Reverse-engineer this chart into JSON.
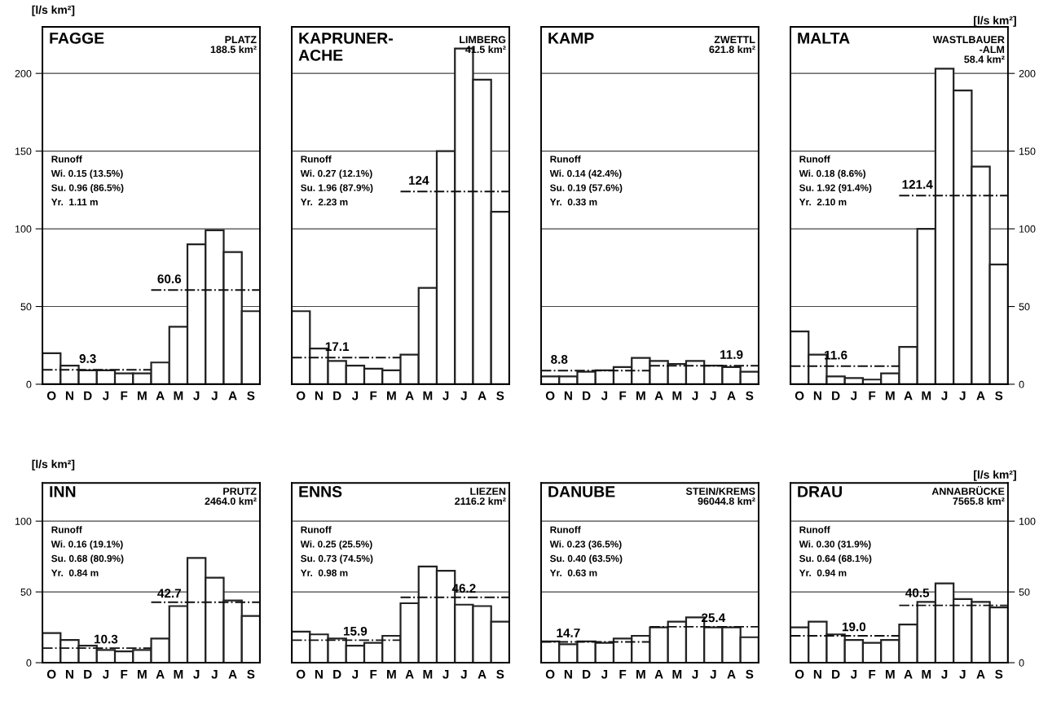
{
  "chart_data": [
    {
      "type": "bar",
      "title": "FAGGE",
      "subtitle": "PLATZ\n188.5 km²",
      "ylabel": "[l/s km²]",
      "categories": [
        "O",
        "N",
        "D",
        "J",
        "F",
        "M",
        "A",
        "M",
        "J",
        "J",
        "A",
        "S"
      ],
      "series": [
        {
          "color": "#ffffff",
          "values": [
            20,
            12,
            9,
            9,
            7,
            7,
            14,
            37,
            90,
            99,
            85,
            47
          ]
        }
      ],
      "ylim": [
        0,
        230
      ],
      "yticks": [
        0,
        50,
        100,
        150,
        200
      ],
      "grid": "y",
      "line_style": "dashed",
      "ref_lines": [
        {
          "axis": "y",
          "value": 9.3,
          "label": "9.3"
        },
        {
          "axis": "y",
          "value": 60.6,
          "label": "60.6"
        }
      ],
      "annotations": [
        "Runoff",
        "Wi. 0.15 (13.5%)",
        "Su. 0.96 (86.5%)",
        "Yr.  1.11 m"
      ]
    },
    {
      "type": "bar",
      "title": "KAPRUNER-\nACHE",
      "subtitle": "LIMBERG\n41.5 km²",
      "categories": [
        "O",
        "N",
        "D",
        "J",
        "F",
        "M",
        "A",
        "M",
        "J",
        "J",
        "A",
        "S"
      ],
      "series": [
        {
          "color": "#ffffff",
          "values": [
            47,
            23,
            15,
            12,
            10,
            9,
            19,
            62,
            150,
            216,
            196,
            111
          ]
        }
      ],
      "ylim": [
        0,
        230
      ],
      "yticks": [
        0,
        50,
        100,
        150,
        200
      ],
      "grid": "y",
      "line_style": "dashed",
      "tick_labels": "x",
      "ref_lines": [
        {
          "axis": "y",
          "value": 17.1,
          "label": "17.1"
        },
        {
          "axis": "y",
          "value": 124,
          "label": "124"
        }
      ],
      "annotations": [
        "Runoff",
        "Wi. 0.27 (12.1%)",
        "Su. 1.96 (87.9%)",
        "Yr.  2.23 m"
      ]
    },
    {
      "type": "bar",
      "title": "KAMP",
      "subtitle": "ZWETTL\n621.8 km²",
      "categories": [
        "O",
        "N",
        "D",
        "J",
        "F",
        "M",
        "A",
        "M",
        "J",
        "J",
        "A",
        "S"
      ],
      "series": [
        {
          "color": "#ffffff",
          "values": [
            5,
            5,
            8,
            9,
            11,
            17,
            15,
            13,
            15,
            12,
            11,
            8
          ]
        }
      ],
      "ylim": [
        0,
        230
      ],
      "yticks": [
        0,
        50,
        100,
        150,
        200
      ],
      "grid": "y",
      "line_style": "dashed",
      "tick_labels": "x",
      "ref_lines": [
        {
          "axis": "y",
          "value": 8.8,
          "label": "8.8"
        },
        {
          "axis": "y",
          "value": 11.9,
          "label": "11.9"
        }
      ],
      "annotations": [
        "Runoff",
        "Wi. 0.14 (42.4%)",
        "Su. 0.19 (57.6%)",
        "Yr.  0.33 m"
      ]
    },
    {
      "type": "bar",
      "title": "MALTA",
      "subtitle": "WASTLBAUER\n-ALM\n58.4 km²",
      "ylabel": "[l/s km²]",
      "categories": [
        "O",
        "N",
        "D",
        "J",
        "F",
        "M",
        "A",
        "M",
        "J",
        "J",
        "A",
        "S"
      ],
      "series": [
        {
          "color": "#ffffff",
          "values": [
            34,
            19,
            5,
            4,
            3,
            7,
            24,
            100,
            203,
            189,
            140,
            77
          ]
        }
      ],
      "ylim": [
        0,
        230
      ],
      "yticks": [
        0,
        50,
        100,
        150,
        200
      ],
      "grid": "y",
      "line_style": "dashed",
      "ref_lines": [
        {
          "axis": "y",
          "value": 11.6,
          "label": "11.6"
        },
        {
          "axis": "y",
          "value": 121.4,
          "label": "121.4"
        }
      ],
      "annotations": [
        "Runoff",
        "Wi. 0.18 (8.6%)",
        "Su. 1.92 (91.4%)",
        "Yr.  2.10 m"
      ]
    },
    {
      "type": "bar",
      "title": "INN",
      "subtitle": "PRUTZ\n2464.0 km²",
      "ylabel": "[l/s km²]",
      "categories": [
        "O",
        "N",
        "D",
        "J",
        "F",
        "M",
        "A",
        "M",
        "J",
        "J",
        "A",
        "S"
      ],
      "series": [
        {
          "color": "#ffffff",
          "values": [
            21,
            16,
            12,
            9,
            8,
            9,
            17,
            40,
            74,
            60,
            44,
            33
          ]
        }
      ],
      "ylim": [
        0,
        127
      ],
      "yticks": [
        0,
        50,
        100
      ],
      "grid": "y",
      "line_style": "dashed",
      "ref_lines": [
        {
          "axis": "y",
          "value": 10.3,
          "label": "10.3"
        },
        {
          "axis": "y",
          "value": 42.7,
          "label": "42.7"
        }
      ],
      "annotations": [
        "Runoff",
        "Wi. 0.16 (19.1%)",
        "Su. 0.68 (80.9%)",
        "Yr.  0.84 m"
      ]
    },
    {
      "type": "bar",
      "title": "ENNS",
      "subtitle": "LIEZEN\n2116.2 km²",
      "categories": [
        "O",
        "N",
        "D",
        "J",
        "F",
        "M",
        "A",
        "M",
        "J",
        "J",
        "A",
        "S"
      ],
      "series": [
        {
          "color": "#ffffff",
          "values": [
            22,
            20,
            17,
            12,
            14,
            19,
            42,
            68,
            65,
            41,
            40,
            29
          ]
        }
      ],
      "ylim": [
        0,
        127
      ],
      "yticks": [
        0,
        50,
        100
      ],
      "grid": "y",
      "line_style": "dashed",
      "tick_labels": "x",
      "ref_lines": [
        {
          "axis": "y",
          "value": 15.9,
          "label": "15.9"
        },
        {
          "axis": "y",
          "value": 46.2,
          "label": "46.2"
        }
      ],
      "annotations": [
        "Runoff",
        "Wi. 0.25 (25.5%)",
        "Su. 0.73 (74.5%)",
        "Yr.  0.98 m"
      ]
    },
    {
      "type": "bar",
      "title": "DANUBE",
      "subtitle": "STEIN/KREMS\n96044.8 km²",
      "categories": [
        "O",
        "N",
        "D",
        "J",
        "F",
        "M",
        "A",
        "M",
        "J",
        "J",
        "A",
        "S"
      ],
      "series": [
        {
          "color": "#ffffff",
          "values": [
            15,
            13,
            15,
            14,
            17,
            19,
            25,
            29,
            32,
            25,
            25,
            18
          ]
        }
      ],
      "ylim": [
        0,
        127
      ],
      "yticks": [
        0,
        50,
        100
      ],
      "grid": "y",
      "line_style": "dashed",
      "tick_labels": "x",
      "ref_lines": [
        {
          "axis": "y",
          "value": 14.7,
          "label": "14.7"
        },
        {
          "axis": "y",
          "value": 25.4,
          "label": "25.4"
        }
      ],
      "annotations": [
        "Runoff",
        "Wi. 0.23 (36.5%)",
        "Su. 0.40 (63.5%)",
        "Yr.  0.63 m"
      ]
    },
    {
      "type": "bar",
      "title": "DRAU",
      "subtitle": "ANNABRÜCKE\n7565.8 km²",
      "ylabel": "[l/s km²]",
      "categories": [
        "O",
        "N",
        "D",
        "J",
        "F",
        "M",
        "A",
        "M",
        "J",
        "J",
        "A",
        "S"
      ],
      "series": [
        {
          "color": "#ffffff",
          "values": [
            25,
            29,
            20,
            16,
            14,
            16,
            27,
            43,
            56,
            45,
            43,
            39
          ]
        }
      ],
      "ylim": [
        0,
        127
      ],
      "yticks": [
        0,
        50,
        100
      ],
      "grid": "y",
      "line_style": "dashed",
      "ref_lines": [
        {
          "axis": "y",
          "value": 19.0,
          "label": "19.0"
        },
        {
          "axis": "y",
          "value": 40.5,
          "label": "40.5"
        }
      ],
      "annotations": [
        "Runoff",
        "Wi. 0.30 (31.9%)",
        "Su. 0.64 (68.1%)",
        "Yr.  0.94 m"
      ]
    }
  ]
}
